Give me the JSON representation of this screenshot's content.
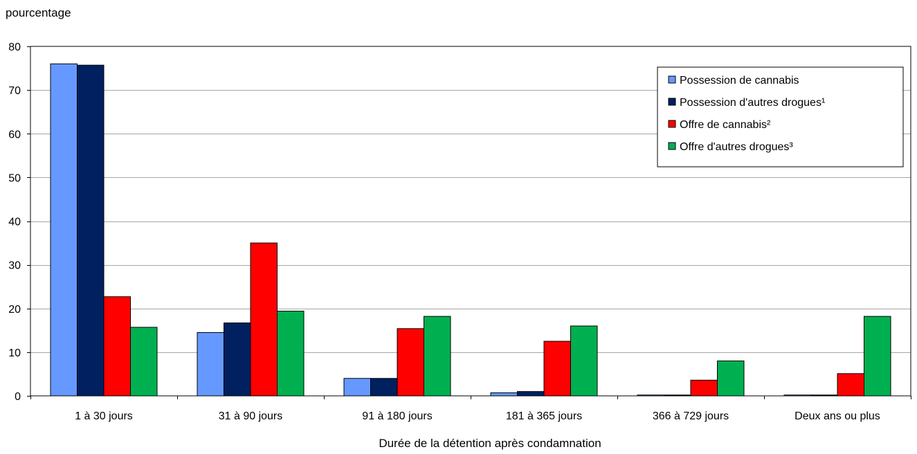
{
  "chart_data": {
    "type": "bar",
    "title": "",
    "ylabel": "pourcentage",
    "xlabel": "Durée de la détention après condamnation",
    "ylim": [
      0,
      80
    ],
    "yticks": [
      0,
      10,
      20,
      30,
      40,
      50,
      60,
      70,
      80
    ],
    "grid": true,
    "legend_position": "top-right",
    "categories": [
      "1 à 30 jours",
      "31 à 90 jours",
      "91 à 180 jours",
      "181 à 365 jours",
      "366 à 729 jours",
      "Deux ans ou plus"
    ],
    "series": [
      {
        "name": "Possession de cannabis",
        "color": "#6699ff",
        "values": [
          76,
          14.5,
          4,
          0.7,
          0.2,
          0.2
        ]
      },
      {
        "name": "Possession d'autres drogues¹",
        "color": "#002060",
        "values": [
          75.7,
          16.7,
          4,
          1,
          0.2,
          0.2
        ]
      },
      {
        "name": "Offre de cannabis²",
        "color": "#ff0000",
        "values": [
          22.7,
          35,
          15.4,
          12.5,
          3.6,
          5.1
        ]
      },
      {
        "name": "Offre d'autres drogues³",
        "color": "#00b050",
        "values": [
          15.7,
          19.4,
          18.2,
          16,
          8,
          18.2
        ]
      }
    ]
  }
}
